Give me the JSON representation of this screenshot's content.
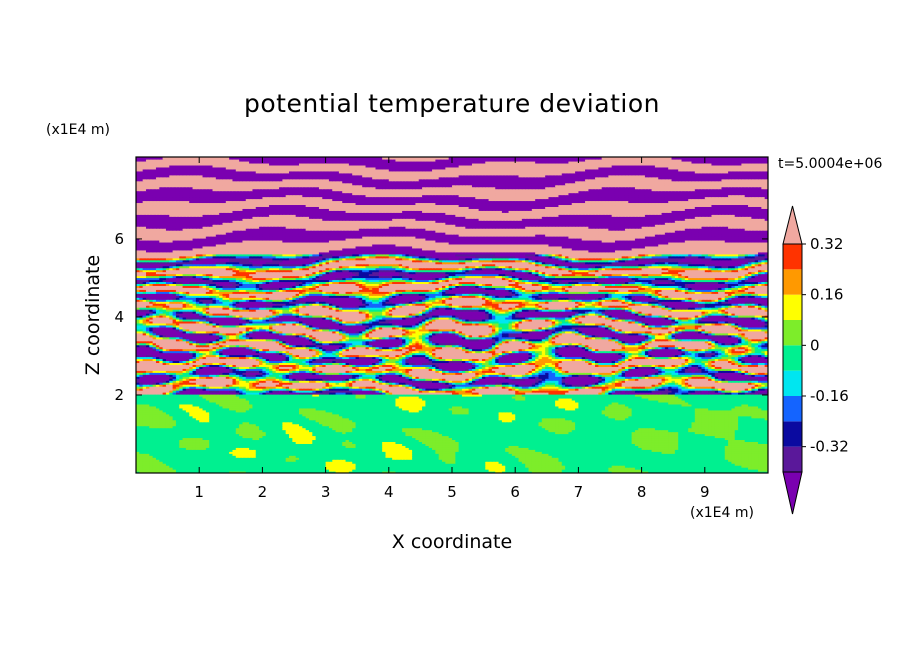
{
  "chart_data": {
    "type": "heatmap",
    "title": "potential temperature deviation",
    "xlabel": "X coordinate",
    "ylabel": "Z coordinate",
    "x_unit": "(x1E4 m)",
    "y_unit": "(x1E4 m)",
    "time_label": "t=5.0004e+06",
    "xlim": [
      0,
      10
    ],
    "ylim": [
      0,
      8.1
    ],
    "x_ticks": [
      "1",
      "2",
      "3",
      "4",
      "5",
      "6",
      "7",
      "8",
      "9"
    ],
    "y_ticks": [
      "2",
      "4",
      "6"
    ],
    "colorbar": {
      "levels": [
        -0.4,
        -0.32,
        -0.24,
        -0.16,
        -0.08,
        0,
        0.08,
        0.16,
        0.24,
        0.32,
        0.4
      ],
      "labels": [
        "0.32",
        "0.16",
        "0",
        "-0.16",
        "-0.32"
      ],
      "colors": [
        "#7a00b0",
        "#5a189a",
        "#0a0aa0",
        "#1464ff",
        "#00e6f0",
        "#00f090",
        "#7ded2a",
        "#ffff00",
        "#ff9900",
        "#ff3300",
        "#f0a8a0"
      ],
      "extend": "both"
    },
    "field_description": {
      "lower_layer_top_z": 2.0,
      "lower_layer_levels": [
        0,
        0.08
      ],
      "upper_layer_bands_levels": [
        -0.4,
        0.4
      ]
    }
  }
}
